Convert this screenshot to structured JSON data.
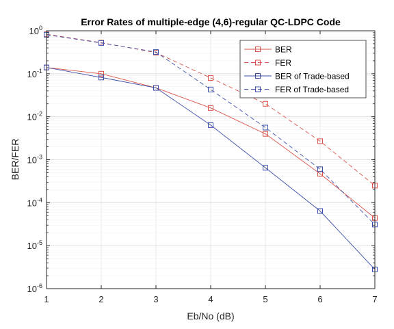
{
  "chart_data": {
    "type": "line",
    "title": "Error Rates of multiple-edge (4,6)-regular QC-LDPC Code",
    "xlabel": "Eb/No (dB)",
    "ylabel": "BER/FER",
    "xlim": [
      1,
      7
    ],
    "ylim": [
      1e-06,
      1
    ],
    "yscale": "log",
    "grid": true,
    "legend_position": "top-right",
    "x_ticks": [
      "1",
      "2",
      "3",
      "4",
      "5",
      "6",
      "7"
    ],
    "y_ticks": [
      {
        "base": "10",
        "exp": "-6"
      },
      {
        "base": "10",
        "exp": "-5"
      },
      {
        "base": "10",
        "exp": "-4"
      },
      {
        "base": "10",
        "exp": "-3"
      },
      {
        "base": "10",
        "exp": "-2"
      },
      {
        "base": "10",
        "exp": "-1"
      },
      {
        "base": "10",
        "exp": "0"
      }
    ],
    "x": [
      1,
      2,
      3,
      4,
      5,
      6,
      7
    ],
    "series": [
      {
        "name": "BER",
        "color": "#d9534a",
        "dash": "solid",
        "marker": "square",
        "values": [
          0.14,
          0.1,
          0.047,
          0.016,
          0.004,
          0.00047,
          4.4e-05
        ]
      },
      {
        "name": "FER",
        "color": "#d9534a",
        "dash": "dashed",
        "marker": "square",
        "values": [
          0.83,
          0.53,
          0.31,
          0.08,
          0.02,
          0.0027,
          0.00025
        ]
      },
      {
        "name": "BER of Trade-based",
        "color": "#3d4ea8",
        "dash": "solid",
        "marker": "square",
        "values": [
          0.14,
          0.082,
          0.047,
          0.0064,
          0.00065,
          6.4e-05,
          2.8e-06
        ]
      },
      {
        "name": "FER of Trade-based",
        "color": "#3d4ea8",
        "dash": "dashed",
        "marker": "square",
        "values": [
          0.81,
          0.52,
          0.32,
          0.043,
          0.0056,
          0.0006,
          3.1e-05
        ]
      }
    ]
  }
}
